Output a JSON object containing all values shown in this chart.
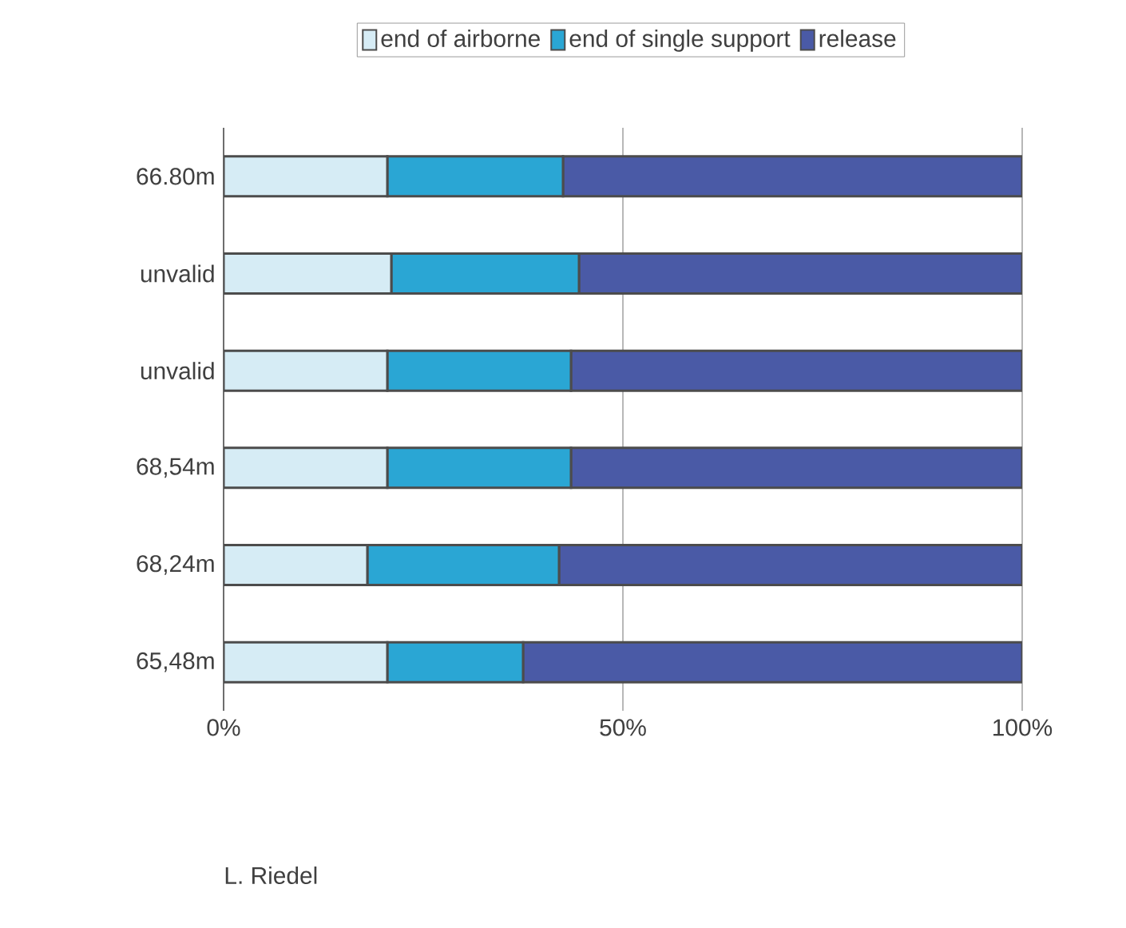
{
  "chart_data": {
    "type": "bar",
    "orientation": "horizontal",
    "stacked": true,
    "categories": [
      "66.80m",
      "unvalid",
      "unvalid",
      "68,54m",
      "68,24m",
      "65,48m"
    ],
    "series": [
      {
        "name": "end of airborne",
        "color": "#d6ecf5",
        "values": [
          20.5,
          21,
          20.5,
          20.5,
          18,
          20.5
        ]
      },
      {
        "name": "end of single support",
        "color": "#2aa6d4",
        "values": [
          22,
          23.5,
          23,
          23,
          24,
          17
        ]
      },
      {
        "name": "release",
        "color": "#4a5aa6",
        "values": [
          57.5,
          55.5,
          56.5,
          56.5,
          58,
          62.5
        ]
      }
    ],
    "xlim": [
      0,
      100
    ],
    "xticks": [
      {
        "value": 0,
        "label": "0%"
      },
      {
        "value": 50,
        "label": "50%"
      },
      {
        "value": 100,
        "label": "100%"
      }
    ],
    "grid": "x",
    "legend": "top",
    "annotations": [
      "L. Riedel"
    ]
  }
}
